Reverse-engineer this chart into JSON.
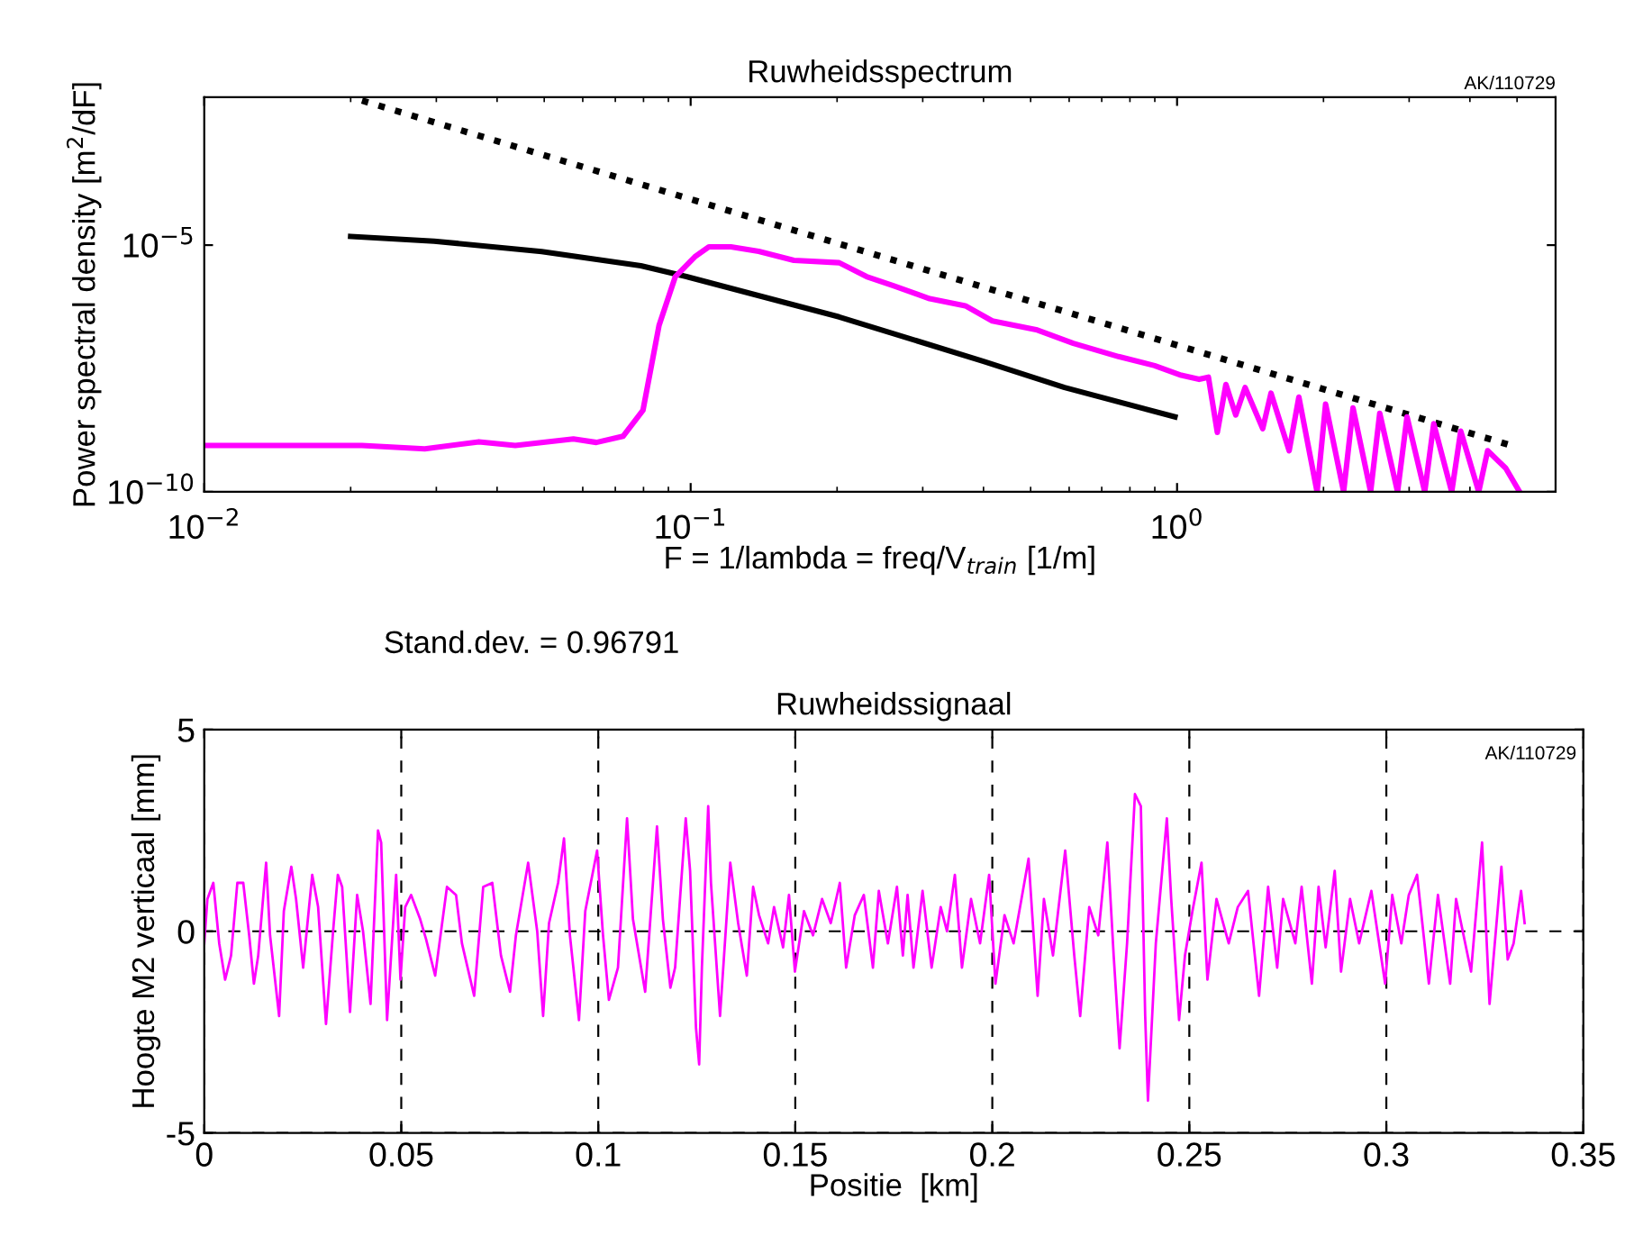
{
  "chart_data": [
    {
      "type": "line",
      "title": "Ruwheidsspectrum",
      "xlabel": "F = 1/lambda = freq/V$_{train}$ [1/m]",
      "ylabel": "Power spectral density [m$^{2}$/dF]",
      "annotations": [
        "AK/110729"
      ],
      "log": "xy",
      "xlim": [
        0.01,
        6
      ],
      "ylim": [
        1e-10,
        0.01
      ],
      "xticks": [
        {
          "value": 0.01,
          "label": "10$^{−2}$"
        },
        {
          "value": 0.1,
          "label": "10$^{−1}$"
        },
        {
          "value": 1,
          "label": "10$^{0}$"
        }
      ],
      "yticks": [
        {
          "value": 1e-10,
          "label": "10$^{−10}$"
        },
        {
          "value": 1e-05,
          "label": "10$^{−5}$"
        }
      ],
      "grid": false,
      "legend": false,
      "series": [
        {
          "color": "#000000",
          "line_style": "dotted",
          "x": [
            0.0211,
            4.94
          ],
          "values": [
            0.0085,
            8.3e-10
          ]
        },
        {
          "color": "#000000",
          "line_style": "solid",
          "x": [
            0.02,
            0.0297,
            0.0494,
            0.079,
            0.098,
            0.202,
            0.4,
            0.587,
            0.99
          ],
          "values": [
            1.5e-05,
            1.2e-05,
            7.4e-06,
            3.8e-06,
            2.3e-06,
            3.5e-07,
            4.4e-08,
            1.3e-08,
            3.3e-09
          ]
        },
        {
          "color": "#ff00ff",
          "line_style": "solid",
          "x": [
            0.01,
            0.0138,
            0.0211,
            0.0284,
            0.0367,
            0.0436,
            0.0574,
            0.064,
            0.0726,
            0.0798,
            0.0861,
            0.093,
            0.102,
            0.109,
            0.121,
            0.138,
            0.163,
            0.202,
            0.23,
            0.261,
            0.31,
            0.367,
            0.417,
            0.516,
            0.612,
            0.758,
            0.899,
            1.02,
            1.11,
            1.16,
            1.21,
            1.26,
            1.32,
            1.38,
            1.5,
            1.56,
            1.7,
            1.78,
            1.94,
            2.02,
            2.2,
            2.3,
            2.5,
            2.61,
            2.84,
            2.97,
            3.23,
            3.37,
            3.67,
            3.83,
            4.17,
            4.35,
            4.74,
            5.06
          ],
          "values": [
            8.7e-10,
            8.7e-10,
            8.7e-10,
            7.4e-10,
            1.03e-09,
            8.7e-10,
            1.18e-09,
            1e-09,
            1.33e-09,
            4.5e-09,
            2.35e-07,
            2.3e-06,
            5.8e-06,
            9.2e-06,
            9.2e-06,
            7.5e-06,
            4.9e-06,
            4.4e-06,
            2.3e-06,
            1.5e-06,
            8.2e-07,
            5.9e-07,
            2.9e-07,
            1.9e-07,
            1.02e-07,
            5.5e-08,
            3.6e-08,
            2.3e-08,
            1.9e-08,
            2.1e-08,
            1.6e-09,
            1.5e-08,
            3.6e-09,
            1.3e-08,
            1.9e-09,
            1e-08,
            6.8e-10,
            8.3e-09,
            1e-10,
            6e-09,
            1e-10,
            5e-09,
            1e-10,
            3.9e-09,
            1e-10,
            3.3e-09,
            1e-10,
            2.4e-09,
            1e-10,
            1.7e-09,
            1e-10,
            6.8e-10,
            3e-10,
            1e-10
          ]
        }
      ]
    },
    {
      "type": "line",
      "title": "Ruwheidssignaal",
      "xlabel": "Positie  [km]",
      "ylabel": "Hoogte M2 verticaal [mm]",
      "annotations": [
        "AK/110729",
        "Stand.dev. = 0.96791"
      ],
      "xlim": [
        0,
        0.35
      ],
      "ylim": [
        -5,
        5
      ],
      "xticks": [
        0,
        0.05,
        0.1,
        0.15,
        0.2,
        0.25,
        0.3,
        0.35
      ],
      "yticks": [
        -5,
        0,
        5
      ],
      "grid": true,
      "legend": false,
      "series": [
        {
          "color": "#ff00ff",
          "line_style": "solid",
          "x": [
            0,
            0.0008,
            0.0023,
            0.0038,
            0.0053,
            0.0068,
            0.0084,
            0.0099,
            0.0114,
            0.0126,
            0.0137,
            0.0157,
            0.0167,
            0.019,
            0.0202,
            0.0221,
            0.0233,
            0.0251,
            0.0274,
            0.0289,
            0.0309,
            0.0327,
            0.0339,
            0.035,
            0.037,
            0.0388,
            0.0403,
            0.0422,
            0.0441,
            0.0449,
            0.0464,
            0.0487,
            0.0498,
            0.051,
            0.0525,
            0.0548,
            0.0563,
            0.0586,
            0.0616,
            0.0639,
            0.0654,
            0.0685,
            0.0708,
            0.0731,
            0.0753,
            0.0776,
            0.0791,
            0.0822,
            0.0845,
            0.086,
            0.0875,
            0.0898,
            0.0913,
            0.0928,
            0.0951,
            0.0967,
            0.0997,
            0.1012,
            0.1027,
            0.105,
            0.1073,
            0.1088,
            0.1119,
            0.1149,
            0.1164,
            0.1183,
            0.1195,
            0.1222,
            0.1233,
            0.1248,
            0.1256,
            0.1263,
            0.1279,
            0.1286,
            0.1309,
            0.1335,
            0.1355,
            0.1377,
            0.1393,
            0.1408,
            0.1431,
            0.1446,
            0.1469,
            0.1484,
            0.1499,
            0.1522,
            0.1545,
            0.1568,
            0.159,
            0.1613,
            0.1629,
            0.1651,
            0.1674,
            0.1697,
            0.1712,
            0.1735,
            0.1758,
            0.1773,
            0.1785,
            0.18,
            0.1823,
            0.1846,
            0.1869,
            0.1885,
            0.1905,
            0.1923,
            0.1946,
            0.1969,
            0.1992,
            0.2008,
            0.2031,
            0.2054,
            0.2074,
            0.2092,
            0.2115,
            0.2131,
            0.2154,
            0.2185,
            0.2208,
            0.2223,
            0.2246,
            0.2269,
            0.2292,
            0.2308,
            0.2323,
            0.2342,
            0.2362,
            0.2377,
            0.2388,
            0.2395,
            0.2415,
            0.2443,
            0.2454,
            0.2474,
            0.2489,
            0.2508,
            0.2531,
            0.2546,
            0.2569,
            0.26,
            0.2623,
            0.2649,
            0.2677,
            0.27,
            0.2723,
            0.2738,
            0.2769,
            0.2785,
            0.2811,
            0.2828,
            0.2846,
            0.2869,
            0.2885,
            0.2908,
            0.2931,
            0.2962,
            0.2997,
            0.3015,
            0.3038,
            0.3057,
            0.3078,
            0.3108,
            0.3131,
            0.3162,
            0.3177,
            0.3215,
            0.3243,
            0.3262,
            0.3292,
            0.3308,
            0.3323,
            0.3342,
            0.3351
          ],
          "values": [
            -0.3,
            0.8,
            1.2,
            -0.3,
            -1.2,
            -0.6,
            1.2,
            1.2,
            -0.1,
            -1.3,
            -0.6,
            1.7,
            -0.1,
            -2.1,
            0.5,
            1.6,
            0.8,
            -0.9,
            1.4,
            0.6,
            -2.3,
            0.0,
            1.4,
            1.1,
            -2.0,
            0.9,
            0.0,
            -1.8,
            2.5,
            2.2,
            -2.2,
            1.4,
            -1.2,
            0.6,
            0.9,
            0.3,
            -0.2,
            -1.1,
            1.1,
            0.9,
            -0.3,
            -1.6,
            1.1,
            1.2,
            -0.6,
            -1.5,
            -0.1,
            1.7,
            0.0,
            -2.1,
            0.2,
            1.2,
            2.3,
            -0.1,
            -2.2,
            0.5,
            2.0,
            -0.1,
            -1.7,
            -0.9,
            2.8,
            0.3,
            -1.5,
            2.6,
            0.3,
            -1.4,
            -0.9,
            2.8,
            1.5,
            -2.4,
            -3.3,
            -0.9,
            3.1,
            1.2,
            -2.1,
            1.7,
            0.2,
            -1.1,
            1.1,
            0.4,
            -0.3,
            0.6,
            -0.4,
            0.9,
            -1.0,
            0.5,
            -0.1,
            0.8,
            0.2,
            1.2,
            -0.9,
            0.4,
            0.9,
            -0.9,
            1.0,
            -0.3,
            1.1,
            -0.6,
            0.9,
            -0.9,
            1.0,
            -0.9,
            0.6,
            0.0,
            1.4,
            -0.9,
            0.8,
            -0.3,
            1.4,
            -1.3,
            0.4,
            -0.3,
            0.8,
            1.8,
            -1.6,
            0.8,
            -0.6,
            2.0,
            -0.6,
            -2.1,
            0.6,
            -0.1,
            2.2,
            -0.6,
            -2.9,
            -0.3,
            3.4,
            3.1,
            -2.1,
            -4.2,
            -0.3,
            2.8,
            0.8,
            -2.2,
            -0.6,
            0.5,
            1.7,
            -1.2,
            0.8,
            -0.3,
            0.6,
            1.0,
            -1.6,
            1.1,
            -0.9,
            0.8,
            -0.3,
            1.1,
            -1.3,
            1.1,
            -0.4,
            1.5,
            -1.0,
            0.8,
            -0.3,
            1.0,
            -1.3,
            0.9,
            -0.3,
            0.9,
            1.4,
            -1.3,
            0.9,
            -1.3,
            0.8,
            -1.0,
            2.2,
            -1.8,
            1.6,
            -0.7,
            -0.3,
            1.0,
            0.2
          ]
        }
      ]
    }
  ]
}
